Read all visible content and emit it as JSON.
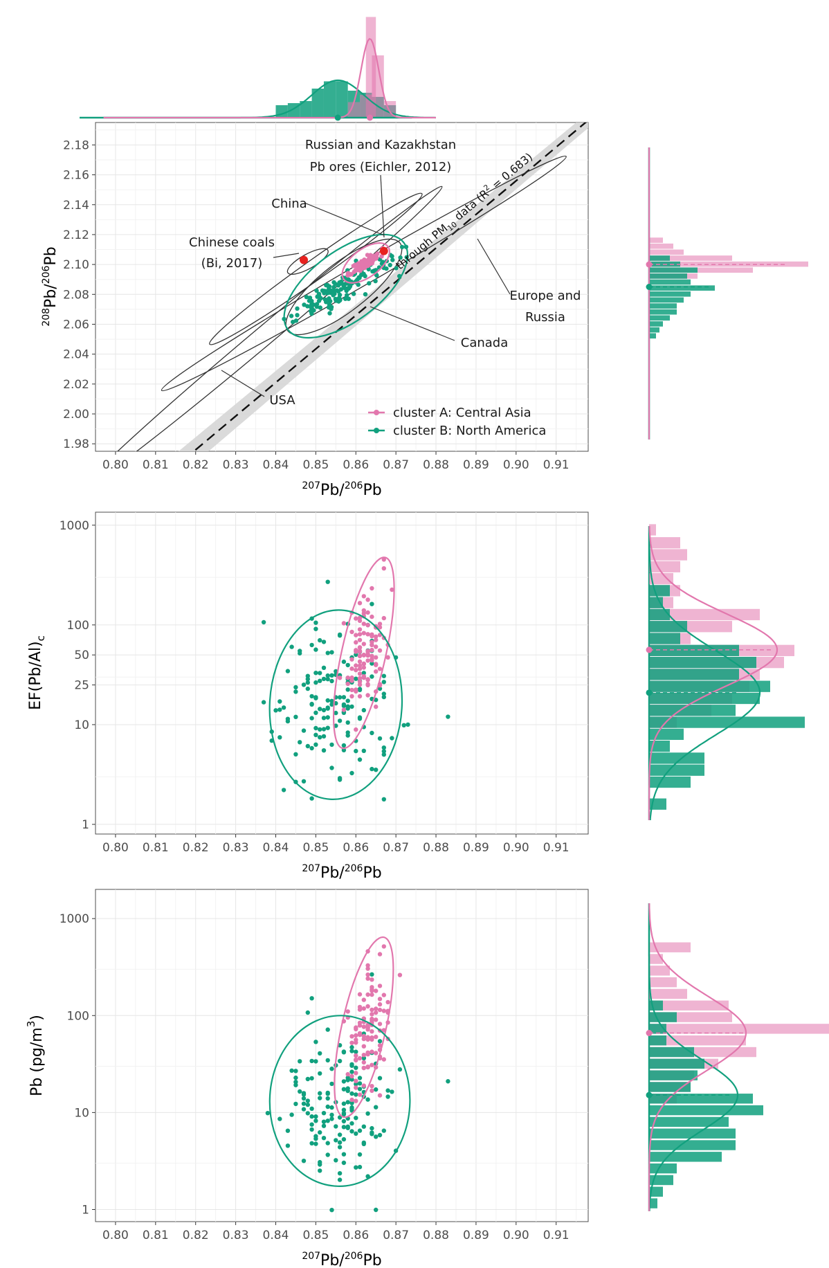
{
  "figure": {
    "legend": [
      {
        "label": "cluster A: Central Asia",
        "color": "#E277AD"
      },
      {
        "label": "cluster B: North America",
        "color": "#11A07E"
      }
    ],
    "colors": {
      "clusterA": "#E277AD",
      "clusterB": "#11A07E",
      "reference_point": "#E8221F",
      "ellipse_outline": "#333333",
      "band": "#D9D9D9"
    }
  },
  "chart_data": [
    {
      "id": "isotope",
      "type": "scatter",
      "xlabel": {
        "sup1": "207",
        "base1": "Pb/",
        "sup2": "206",
        "base2": "Pb"
      },
      "ylabel": {
        "sup1": "208",
        "base1": "Pb/",
        "sup2": "206",
        "base2": "Pb"
      },
      "xlim": [
        0.795,
        0.918
      ],
      "ylim": [
        1.975,
        2.195
      ],
      "xticks": [
        "0.80",
        "0.81",
        "0.82",
        "0.83",
        "0.84",
        "0.85",
        "0.86",
        "0.87",
        "0.88",
        "0.89",
        "0.90",
        "0.91"
      ],
      "yticks": [
        "1.98",
        "2.00",
        "2.02",
        "2.04",
        "2.06",
        "2.08",
        "2.10",
        "2.12",
        "2.14",
        "2.16",
        "2.18"
      ],
      "regression": {
        "slope": 2.25,
        "intercept": 0.131,
        "label_prefix": "through PM",
        "label_sub": "10",
        "label_mid": " data (R",
        "label_sup": "2",
        "label_suffix": " = 0.683)"
      },
      "region_ellipses": [
        {
          "name": "USA",
          "cx": 0.837,
          "cy": 2.052,
          "semi_major": 0.0445,
          "semi_minor": 0.0016,
          "slope": 2.25
        },
        {
          "name": "Europe and Russia",
          "cx": 0.862,
          "cy": 2.094,
          "semi_major": 0.0505,
          "semi_minor": 0.0018,
          "slope": 1.55
        },
        {
          "name": "China",
          "cx": 0.85,
          "cy": 2.097,
          "semi_major": 0.0265,
          "semi_minor": 0.0017,
          "slope": 1.9
        },
        {
          "name": "Chinese coals",
          "cx": 0.848,
          "cy": 2.102,
          "semi_major": 0.005,
          "semi_minor": 0.0012,
          "slope": 1.5
        },
        {
          "name": "Canada",
          "cx": 0.857,
          "cy": 2.085,
          "semi_major": 0.014,
          "semi_minor": 0.004,
          "slope": 2.1
        }
      ],
      "cluster_ellipses": [
        {
          "cluster": "A",
          "cx": 0.8625,
          "cy": 2.101,
          "semi_major": 0.0055,
          "semi_minor": 0.0018,
          "slope": 2.0
        },
        {
          "cluster": "B",
          "cx": 0.8575,
          "cy": 2.0855,
          "semi_major": 0.0145,
          "semi_minor": 0.0045,
          "slope": 2.0
        }
      ],
      "reference_points": [
        {
          "name": "Chinese coals (Bi, 2017)",
          "x": 0.847,
          "y": 2.103
        },
        {
          "name": "Russian and Kazakhstan Pb ores (Eichler, 2012)",
          "x": 0.867,
          "y": 2.109
        }
      ],
      "annotations": [
        {
          "name": "russia-ores",
          "lines": [
            "Russian and Kazakhstan",
            "Pb ores (Eichler, 2012)"
          ]
        },
        {
          "name": "china",
          "lines": [
            "China"
          ]
        },
        {
          "name": "chinese-coals",
          "lines": [
            "Chinese coals",
            "(Bi, 2017)"
          ]
        },
        {
          "name": "europe",
          "lines": [
            "Europe and",
            "Russia"
          ]
        },
        {
          "name": "canada",
          "lines": [
            "Canada"
          ]
        },
        {
          "name": "usa",
          "lines": [
            "USA"
          ]
        }
      ],
      "clusterA": {
        "n": 120,
        "x_mean": 0.8625,
        "x_sd": 0.0018,
        "y_mean": 2.101,
        "y_sd": 0.0035
      },
      "clusterB": {
        "n": 150,
        "x_mean": 0.8555,
        "x_sd": 0.0065,
        "y_mean": 2.083,
        "y_sd": 0.011
      },
      "marginal_x": {
        "clusterA": {
          "mean": 0.8635,
          "sd": 0.0022
        },
        "clusterB": {
          "mean": 0.8555,
          "sd": 0.0065
        }
      },
      "marginal_y": {
        "clusterA": {
          "mean": 2.1,
          "sd": 0.0035
        },
        "clusterB": {
          "mean": 2.085,
          "sd": 0.009
        }
      }
    },
    {
      "id": "ef",
      "type": "scatter",
      "scale_y": "log",
      "xlabel": {
        "sup1": "207",
        "base1": "Pb/",
        "sup2": "206",
        "base2": "Pb"
      },
      "ylabel_text": "EF(Pb/Al)",
      "ylabel_sub": "c",
      "xlim": [
        0.795,
        0.918
      ],
      "ylim": [
        0.8,
        1350
      ],
      "xticks": [
        "0.80",
        "0.81",
        "0.82",
        "0.83",
        "0.84",
        "0.85",
        "0.86",
        "0.87",
        "0.88",
        "0.89",
        "0.90",
        "0.91"
      ],
      "yticks": [
        1,
        10,
        25,
        50,
        100,
        1000
      ],
      "ytick_labels": [
        "1",
        "10",
        "25",
        "50",
        "100",
        "1000"
      ],
      "cluster_ellipses": [
        {
          "cluster": "A",
          "cx": 0.862,
          "cy_log10": 1.72,
          "semi_x": 0.0055,
          "semi_y": 0.98,
          "rot": 0.45
        },
        {
          "cluster": "B",
          "cx": 0.855,
          "cy_log10": 1.2,
          "semi_x": 0.0165,
          "semi_y": 0.95,
          "rot": 0.12
        }
      ],
      "clusterA": {
        "n": 110,
        "x_mean": 0.8625,
        "x_sd": 0.0025,
        "logy_mean": 1.74,
        "logy_sd": 0.32
      },
      "clusterB": {
        "n": 160,
        "x_mean": 0.855,
        "x_sd": 0.0075,
        "logy_mean": 1.22,
        "logy_sd": 0.42
      },
      "outlier_B": {
        "x": 0.883,
        "y": 12
      },
      "marginal_y": {
        "clusterA": {
          "mean_log10": 1.75,
          "sd_log10": 0.36
        },
        "clusterB": {
          "mean_log10": 1.32,
          "sd_log10": 0.42
        }
      }
    },
    {
      "id": "pb",
      "type": "scatter",
      "scale_y": "log",
      "xlabel": {
        "sup1": "207",
        "base1": "Pb/",
        "sup2": "206",
        "base2": "Pb"
      },
      "ylabel_text": "Pb (pg/m",
      "ylabel_sup": "3",
      "ylabel_end": ")",
      "xlim": [
        0.795,
        0.918
      ],
      "ylim": [
        0.75,
        2000
      ],
      "xticks": [
        "0.80",
        "0.81",
        "0.82",
        "0.83",
        "0.84",
        "0.85",
        "0.86",
        "0.87",
        "0.88",
        "0.89",
        "0.90",
        "0.91"
      ],
      "yticks": [
        1,
        10,
        100,
        1000
      ],
      "ytick_labels": [
        "1",
        "10",
        "100",
        "1000"
      ],
      "cluster_ellipses": [
        {
          "cluster": "A",
          "cx": 0.862,
          "cy_log10": 1.88,
          "semi_x": 0.0055,
          "semi_y": 0.95,
          "rot": 0.45
        },
        {
          "cluster": "B",
          "cx": 0.856,
          "cy_log10": 1.12,
          "semi_x": 0.0175,
          "semi_y": 0.88,
          "rot": 0.05
        }
      ],
      "clusterA": {
        "n": 110,
        "x_mean": 0.8628,
        "x_sd": 0.0028,
        "logy_mean": 1.85,
        "logy_sd": 0.33
      },
      "clusterB": {
        "n": 160,
        "x_mean": 0.8555,
        "x_sd": 0.0075,
        "logy_mean": 1.1,
        "logy_sd": 0.38
      },
      "outlier_B": {
        "x": 0.883,
        "y": 21
      },
      "marginal_y": {
        "clusterA": {
          "mean_log10": 1.82,
          "sd_log10": 0.38
        },
        "clusterB": {
          "mean_log10": 1.18,
          "sd_log10": 0.36
        }
      }
    }
  ]
}
